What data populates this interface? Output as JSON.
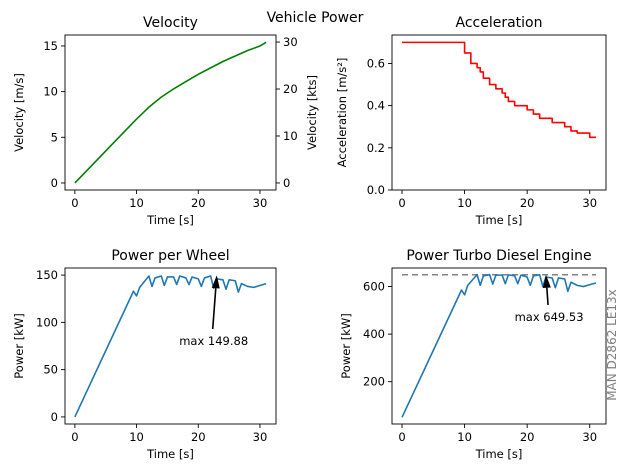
{
  "figure": {
    "suptitle": "Vehicle Power",
    "side_label": "MAN D2862 LE13x"
  },
  "colors": {
    "velocity": "#008000",
    "acceleration": "#ff0000",
    "power": "#1f77b4",
    "max_line": "#808080",
    "side_label": "#808080"
  },
  "chart_data": [
    {
      "id": "velocity",
      "type": "line",
      "title": "Velocity",
      "xlabel": "Time [s]",
      "ylabel": "Velocity [m/s]",
      "ylabel_right": "Velocity [kts]",
      "xlim": [
        -1.6,
        32.6
      ],
      "ylim": [
        -0.77,
        16.2
      ],
      "ylim_right_kts": [
        -1.5,
        31.5
      ],
      "xticks": [
        0,
        10,
        20,
        30
      ],
      "yticks": [
        0,
        5,
        10,
        15
      ],
      "yticks_right": [
        0,
        10,
        20,
        30
      ],
      "grid": false,
      "series": [
        {
          "color": "#008000",
          "x": [
            0,
            2,
            4,
            6,
            8,
            10,
            12,
            14,
            16,
            18,
            20,
            22,
            24,
            26,
            28,
            30,
            31
          ],
          "y": [
            0,
            1.4,
            2.8,
            4.2,
            5.6,
            7.0,
            8.3,
            9.4,
            10.3,
            11.1,
            11.9,
            12.6,
            13.3,
            13.9,
            14.5,
            15.0,
            15.4
          ]
        }
      ]
    },
    {
      "id": "acceleration",
      "type": "line",
      "title": "Acceleration",
      "xlabel": "Time [s]",
      "ylabel": "Acceleration [m/s²]",
      "xlim": [
        -1.6,
        32.6
      ],
      "ylim": [
        0,
        0.735
      ],
      "xticks": [
        0,
        10,
        20,
        30
      ],
      "yticks": [
        0.0,
        0.2,
        0.4,
        0.6
      ],
      "ytick_labels": [
        "0.0",
        "0.2",
        "0.4",
        "0.6"
      ],
      "grid": false,
      "series": [
        {
          "color": "#ff0000",
          "step": true,
          "x": [
            0,
            10,
            11,
            12,
            12.5,
            13,
            14,
            15,
            16,
            16.5,
            17,
            18,
            20,
            21,
            22,
            24,
            26,
            27,
            28,
            30,
            31
          ],
          "y": [
            0.7,
            0.65,
            0.6,
            0.58,
            0.56,
            0.53,
            0.5,
            0.48,
            0.46,
            0.44,
            0.42,
            0.4,
            0.38,
            0.36,
            0.34,
            0.32,
            0.3,
            0.28,
            0.27,
            0.25,
            0.25
          ]
        }
      ]
    },
    {
      "id": "power-wheel",
      "type": "line",
      "title": "Power per Wheel",
      "xlabel": "Time [s]",
      "ylabel": "Power [kW]",
      "xlim": [
        -1.6,
        32.6
      ],
      "ylim": [
        -7.5,
        157.5
      ],
      "xticks": [
        0,
        10,
        20,
        30
      ],
      "yticks": [
        0,
        50,
        100,
        150
      ],
      "grid": false,
      "series": [
        {
          "color": "#1f77b4",
          "x": [
            0,
            9.5,
            10,
            10.5,
            12,
            12.5,
            13,
            14,
            14.5,
            15,
            16,
            16.5,
            17,
            18,
            18.5,
            19,
            20,
            20.5,
            21,
            22,
            22.5,
            23,
            24,
            24.5,
            25,
            26,
            26.5,
            27,
            28,
            29,
            30,
            31
          ],
          "y": [
            0,
            133,
            128,
            137,
            149,
            138,
            147,
            149,
            139,
            148,
            148,
            140,
            149,
            147,
            140,
            148,
            146,
            138,
            147,
            149,
            136,
            146,
            145,
            135,
            145,
            144,
            132,
            141,
            138,
            137,
            139,
            141
          ]
        }
      ],
      "annotation": {
        "text": "max 149.88",
        "x": 23,
        "y": 149.88,
        "text_x": 22.5,
        "text_y": 76
      }
    },
    {
      "id": "power-engine",
      "type": "line",
      "title": "Power Turbo Diesel Engine",
      "xlabel": "Time [s]",
      "ylabel": "Power [kW]",
      "xlim": [
        -1.6,
        32.6
      ],
      "ylim": [
        22,
        678
      ],
      "xticks": [
        0,
        10,
        20,
        30
      ],
      "yticks": [
        200,
        400,
        600
      ],
      "grid": false,
      "hline": {
        "y": 649.53,
        "color": "#808080",
        "style": "dashed"
      },
      "series": [
        {
          "color": "#1f77b4",
          "x": [
            0,
            9.5,
            10,
            10.5,
            12,
            12.5,
            13,
            14,
            14.5,
            15,
            16,
            16.5,
            17,
            18,
            18.5,
            19,
            20,
            20.5,
            21,
            22,
            22.5,
            23,
            24,
            24.5,
            25,
            26,
            26.5,
            27,
            28,
            29,
            30,
            31
          ],
          "y": [
            50,
            585,
            565,
            605,
            650,
            605,
            645,
            650,
            610,
            648,
            648,
            612,
            649,
            645,
            612,
            648,
            640,
            605,
            645,
            649.5,
            600,
            640,
            636,
            595,
            636,
            632,
            580,
            618,
            605,
            600,
            608,
            615
          ]
        }
      ],
      "annotation": {
        "text": "max 649.53",
        "x": 23,
        "y": 649.53,
        "text_x": 23.5,
        "text_y": 455
      }
    }
  ]
}
